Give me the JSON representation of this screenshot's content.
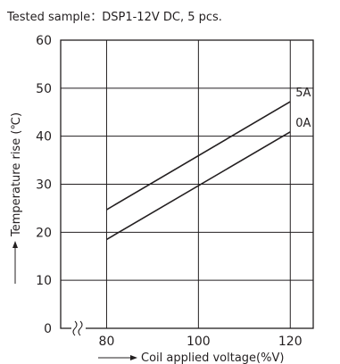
{
  "chart_data": {
    "type": "line",
    "subtitle": "Tested sample：DSP1-12V DC, 5 pcs.",
    "xlabel": "Coil applied voltage(%V)",
    "ylabel": "Temperature rise (℃)",
    "x_ticks": [
      80,
      100,
      120
    ],
    "y_ticks": [
      0,
      10,
      20,
      30,
      40,
      50,
      60
    ],
    "xlim": [
      70,
      125
    ],
    "ylim": [
      0,
      60
    ],
    "grid": true,
    "axis_break": "x",
    "series": [
      {
        "name": "5A",
        "x": [
          80,
          120
        ],
        "y": [
          24.7,
          47.2
        ]
      },
      {
        "name": "0A",
        "x": [
          80,
          120
        ],
        "y": [
          18.5,
          40.9
        ]
      }
    ]
  }
}
